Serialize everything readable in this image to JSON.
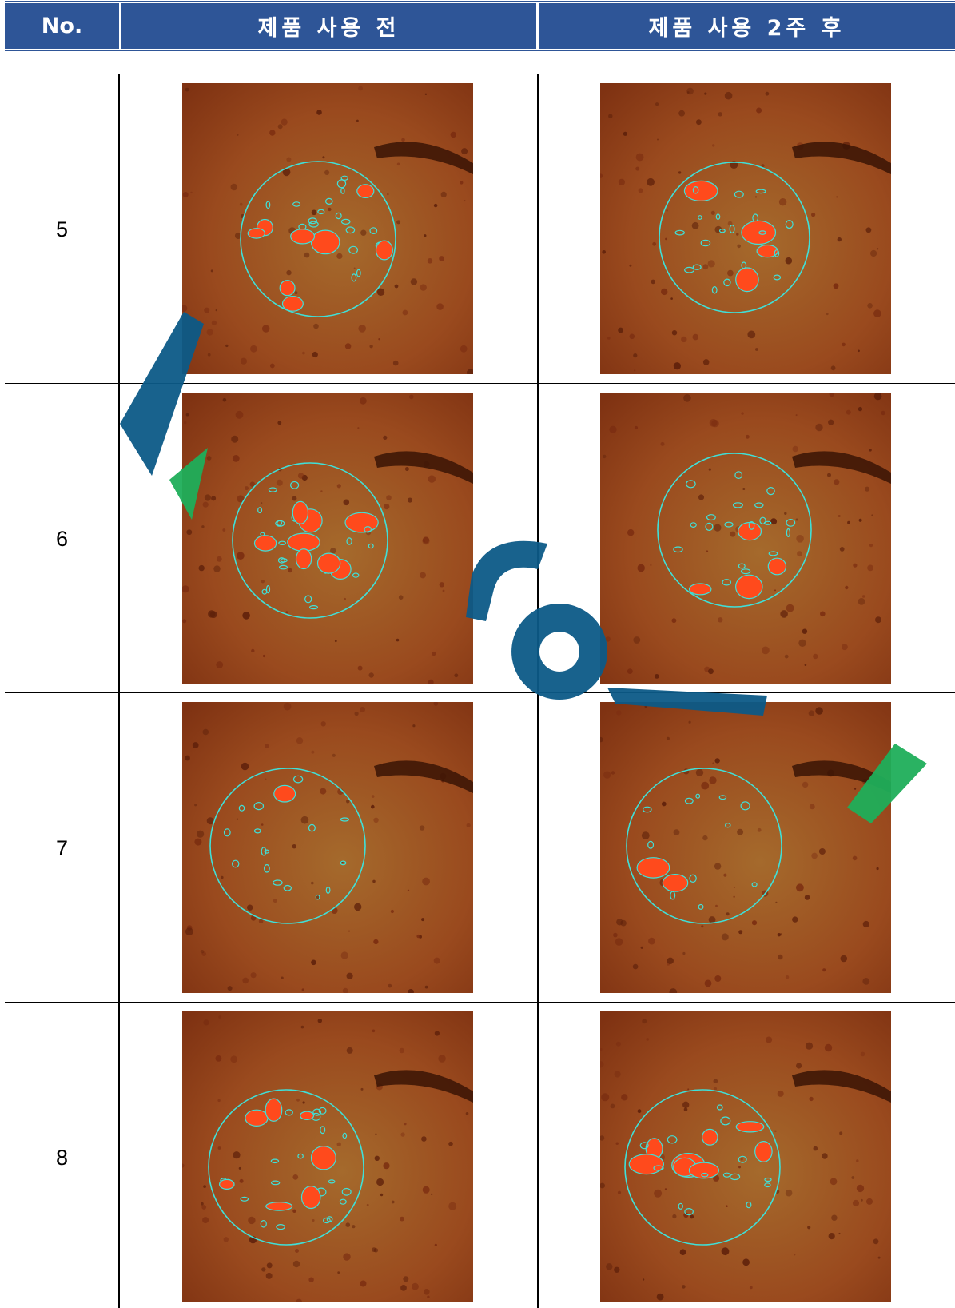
{
  "header": {
    "col_no": "No.",
    "col_before": "제품 사용 전",
    "col_after": "제품 사용 2주 후"
  },
  "rows": [
    {
      "no": "5"
    },
    {
      "no": "6"
    },
    {
      "no": "7"
    },
    {
      "no": "8"
    }
  ],
  "colors": {
    "header_bg": "#2e5597",
    "skin": "#a8451c",
    "highlight": "#ff4a1c",
    "outline": "#3fe0d8",
    "watermark_blue": "#0c5a87",
    "watermark_green": "#1fae5a"
  }
}
